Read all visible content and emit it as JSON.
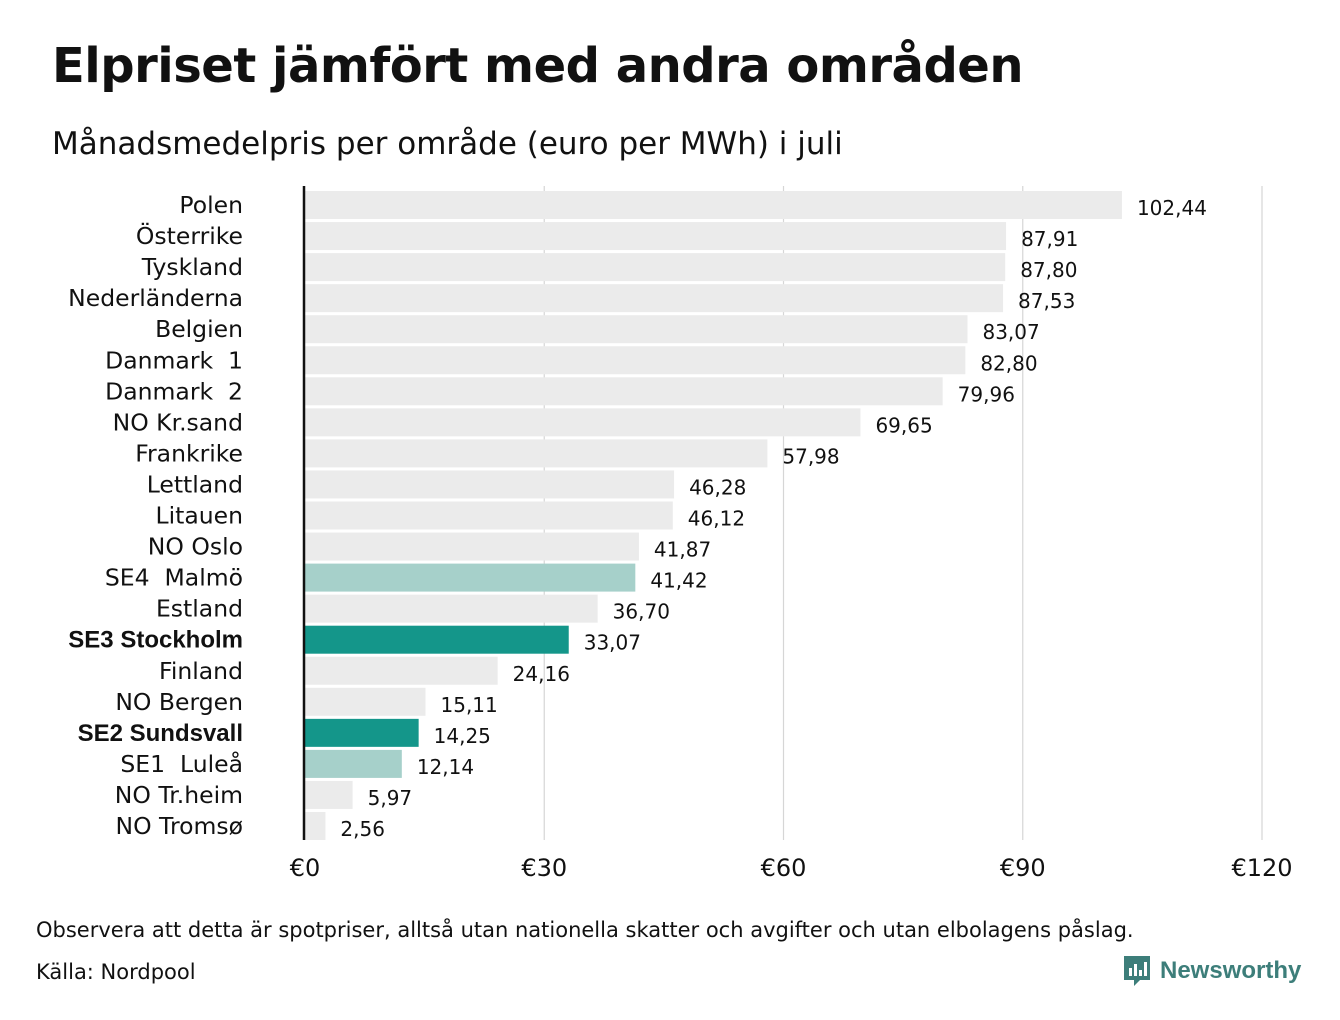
{
  "chart_data": {
    "type": "bar",
    "orientation": "horizontal",
    "title": "Elpriset jämfört med andra områden",
    "subtitle": "Månadsmedelpris per område (euro per MWh) i juli",
    "categories": [
      "Polen",
      "Österrike",
      "Tyskland",
      "Nederländerna",
      "Belgien",
      "Danmark  1",
      "Danmark  2",
      "NO Kr.sand",
      "Frankrike",
      "Lettland",
      "Litauen",
      "NO Oslo",
      "SE4  Malmö",
      "Estland",
      "SE3 Stockholm",
      "Finland",
      "NO Bergen",
      "SE2 Sundsvall",
      "SE1  Luleå",
      "NO Tr.heim",
      "NO Tromsø"
    ],
    "values": [
      102.44,
      87.91,
      87.8,
      87.53,
      83.07,
      82.8,
      79.96,
      69.65,
      57.98,
      46.28,
      46.12,
      41.87,
      41.42,
      36.7,
      33.07,
      24.16,
      15.11,
      14.25,
      12.14,
      5.97,
      2.56
    ],
    "value_labels": [
      "102,44",
      "87,91",
      "87,80",
      "87,53",
      "83,07",
      "82,80",
      "79,96",
      "69,65",
      "57,98",
      "46,28",
      "46,12",
      "41,87",
      "41,42",
      "36,70",
      "33,07",
      "24,16",
      "15,11",
      "14,25",
      "12,14",
      "5,97",
      "2,56"
    ],
    "highlight": [
      "other",
      "other",
      "other",
      "other",
      "other",
      "other",
      "other",
      "other",
      "other",
      "other",
      "other",
      "other",
      "light",
      "other",
      "strong",
      "other",
      "other",
      "strong",
      "light",
      "other",
      "other"
    ],
    "bold_labels": [
      "SE3 Stockholm",
      "SE2 Sundsvall"
    ],
    "xlim": [
      0,
      120
    ],
    "xticks": [
      0,
      30,
      60,
      90,
      120
    ],
    "xtick_labels": [
      "€0",
      "€30",
      "€60",
      "€90",
      "€120"
    ],
    "grid": true,
    "xlabel": "",
    "ylabel": "",
    "colors": {
      "other": "#ebebeb",
      "light": "#a6d0ca",
      "strong": "#14968a",
      "grid": "#d6d6d6",
      "axis": "#111111"
    }
  },
  "footnote": "Observera att detta är spotpriser, alltså utan nationella skatter och avgifter och utan elbolagens påslag.",
  "source": "Källa: Nordpool",
  "brand": {
    "name": "Newsworthy",
    "icon": "newsworthy-logo-icon",
    "color": "#3d7e7a"
  }
}
